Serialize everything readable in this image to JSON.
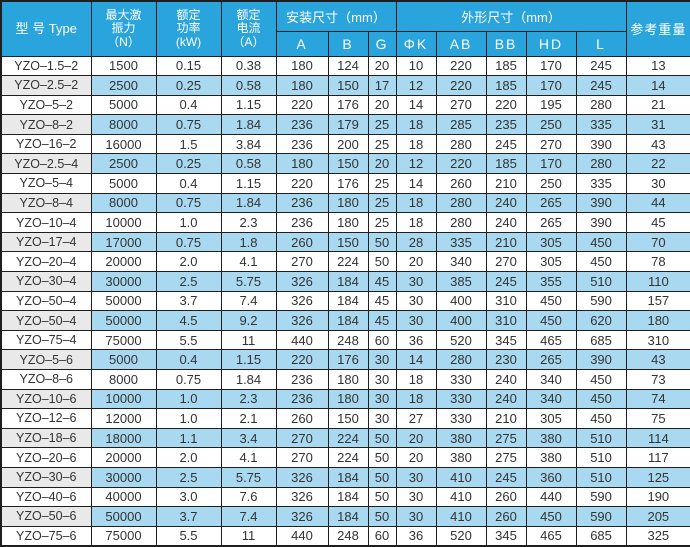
{
  "colors": {
    "header_bg": "#2aa4dc",
    "header_text": "#ffffff",
    "alt_row_bg": "#a9d9f1",
    "alt_model_bg": "#e9e9e9",
    "border": "#1f1f1f",
    "text": "#333333"
  },
  "table": {
    "header": {
      "model": [
        "型 号",
        "Type"
      ],
      "force": [
        "最大激",
        "振力",
        "（N）"
      ],
      "power": [
        "额定",
        "功率",
        "(kW)"
      ],
      "current": [
        "额定",
        "电流",
        "（A）"
      ],
      "install_group": "安装尺寸（mm）",
      "outline_group": "外形尺寸（mm）",
      "sub_columns": [
        "A",
        "B",
        "G",
        "ΦK",
        "AB",
        "BB",
        "HD",
        "L"
      ],
      "weight": "参考重量"
    },
    "rows": [
      [
        "YZO–1.5–2",
        "1500",
        "0.15",
        "0.38",
        "180",
        "124",
        "20",
        "10",
        "220",
        "185",
        "170",
        "245",
        "13"
      ],
      [
        "YZO–2.5–2",
        "2500",
        "0.25",
        "0.58",
        "180",
        "150",
        "17",
        "12",
        "220",
        "185",
        "170",
        "245",
        "14"
      ],
      [
        "YZO–5–2",
        "5000",
        "0.4",
        "1.15",
        "220",
        "176",
        "20",
        "14",
        "270",
        "220",
        "195",
        "280",
        "21"
      ],
      [
        "YZO–8–2",
        "8000",
        "0.75",
        "1.84",
        "236",
        "179",
        "25",
        "18",
        "285",
        "235",
        "250",
        "335",
        "31"
      ],
      [
        "YZO–16–2",
        "16000",
        "1.5",
        "3.84",
        "236",
        "200",
        "25",
        "18",
        "280",
        "245",
        "270",
        "390",
        "43"
      ],
      [
        "YZO–2.5–4",
        "2500",
        "0.25",
        "0.58",
        "180",
        "150",
        "20",
        "12",
        "220",
        "185",
        "170",
        "280",
        "22"
      ],
      [
        "YZO–5–4",
        "5000",
        "0.4",
        "1.15",
        "220",
        "176",
        "25",
        "14",
        "260",
        "210",
        "250",
        "335",
        "30"
      ],
      [
        "YZO–8–4",
        "8000",
        "0.75",
        "1.84",
        "236",
        "180",
        "25",
        "18",
        "280",
        "240",
        "265",
        "390",
        "44"
      ],
      [
        "YZO–10–4",
        "10000",
        "1.0",
        "2.3",
        "236",
        "180",
        "25",
        "18",
        "280",
        "240",
        "265",
        "390",
        "45"
      ],
      [
        "YZO–17–4",
        "17000",
        "0.75",
        "1.8",
        "260",
        "150",
        "50",
        "28",
        "335",
        "210",
        "305",
        "450",
        "70"
      ],
      [
        "YZO–20–4",
        "20000",
        "2.0",
        "4.1",
        "270",
        "224",
        "50",
        "20",
        "340",
        "270",
        "305",
        "450",
        "78"
      ],
      [
        "YZO–30–4",
        "30000",
        "2.5",
        "5.75",
        "326",
        "184",
        "45",
        "30",
        "385",
        "245",
        "355",
        "510",
        "110"
      ],
      [
        "YZO–50–4",
        "50000",
        "3.7",
        "7.4",
        "326",
        "184",
        "45",
        "30",
        "400",
        "310",
        "450",
        "590",
        "157"
      ],
      [
        "YZO–50–4",
        "50000",
        "4.5",
        "9.2",
        "326",
        "184",
        "45",
        "30",
        "400",
        "310",
        "450",
        "620",
        "180"
      ],
      [
        "YZO–75–4",
        "75000",
        "5.5",
        "11",
        "440",
        "248",
        "60",
        "36",
        "520",
        "345",
        "465",
        "685",
        "310"
      ],
      [
        "YZO–5–6",
        "5000",
        "0.4",
        "1.15",
        "220",
        "176",
        "30",
        "14",
        "280",
        "230",
        "265",
        "390",
        "43"
      ],
      [
        "YZO–8–6",
        "8000",
        "0.75",
        "1.84",
        "236",
        "180",
        "30",
        "18",
        "330",
        "240",
        "340",
        "450",
        "73"
      ],
      [
        "YZO–10–6",
        "10000",
        "1.0",
        "2.3",
        "236",
        "180",
        "30",
        "18",
        "330",
        "240",
        "340",
        "450",
        "74"
      ],
      [
        "YZO–12–6",
        "12000",
        "1.0",
        "2.1",
        "260",
        "150",
        "30",
        "27",
        "330",
        "210",
        "305",
        "450",
        "75"
      ],
      [
        "YZO–18–6",
        "18000",
        "1.1",
        "3.4",
        "270",
        "224",
        "50",
        "20",
        "380",
        "275",
        "380",
        "510",
        "114"
      ],
      [
        "YZO–20–6",
        "20000",
        "2.0",
        "4.1",
        "270",
        "224",
        "50",
        "20",
        "380",
        "275",
        "380",
        "510",
        "117"
      ],
      [
        "YZO–30–6",
        "30000",
        "2.5",
        "5.75",
        "326",
        "184",
        "50",
        "30",
        "410",
        "245",
        "360",
        "510",
        "125"
      ],
      [
        "YZO–40–6",
        "40000",
        "3.0",
        "7.6",
        "326",
        "184",
        "50",
        "30",
        "410",
        "260",
        "440",
        "590",
        "190"
      ],
      [
        "YZO–50–6",
        "50000",
        "3.7",
        "7.4",
        "326",
        "184",
        "50",
        "30",
        "410",
        "260",
        "450",
        "590",
        "205"
      ],
      [
        "YZO–75–6",
        "75000",
        "5.5",
        "11",
        "440",
        "248",
        "60",
        "36",
        "520",
        "345",
        "465",
        "685",
        "325"
      ]
    ]
  }
}
